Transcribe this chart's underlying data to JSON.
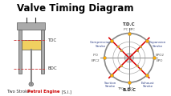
{
  "title": "Valve Timing Diagram",
  "title_bg": "#FFFF00",
  "title_color": "#000000",
  "title_fontsize": 8.5,
  "bg_color": "#FFFFFF",
  "left_bg": "#FFFFFF",
  "right_bg": "#D8EEF8",
  "engine_label_normal": "Two Stroke ",
  "engine_label_bold": "Petrol Engine",
  "engine_label_end": " [S.I.]",
  "tdc_label": "TDC",
  "bdc_label": "BDC",
  "tdc_label_diag": "T.D.C",
  "bdc_label_diag": "B.D.C",
  "compression_label": "Compression\nStroke",
  "expansion_label": "Expansion\nStroke",
  "suction_label": "Suction\nStroke",
  "exhaust_label": "Exhaust\nStroke",
  "cross_color": "#DD0000",
  "piston_color": "#F0D060",
  "cylinder_wall_color": "#AAAAAA",
  "cylinder_edge_color": "#555555",
  "rod_color": "#888888",
  "port_labels": [
    "EPC",
    "IPC",
    "EPO",
    "IPO",
    "EPC2",
    "TPC",
    "EPO2"
  ],
  "circle_color": "#888888",
  "dot_color": "#FFAA00",
  "label_color": "#334488",
  "port_color": "#555555",
  "arc_color": "#888888",
  "inner_circle_color": "#CCCCCC"
}
